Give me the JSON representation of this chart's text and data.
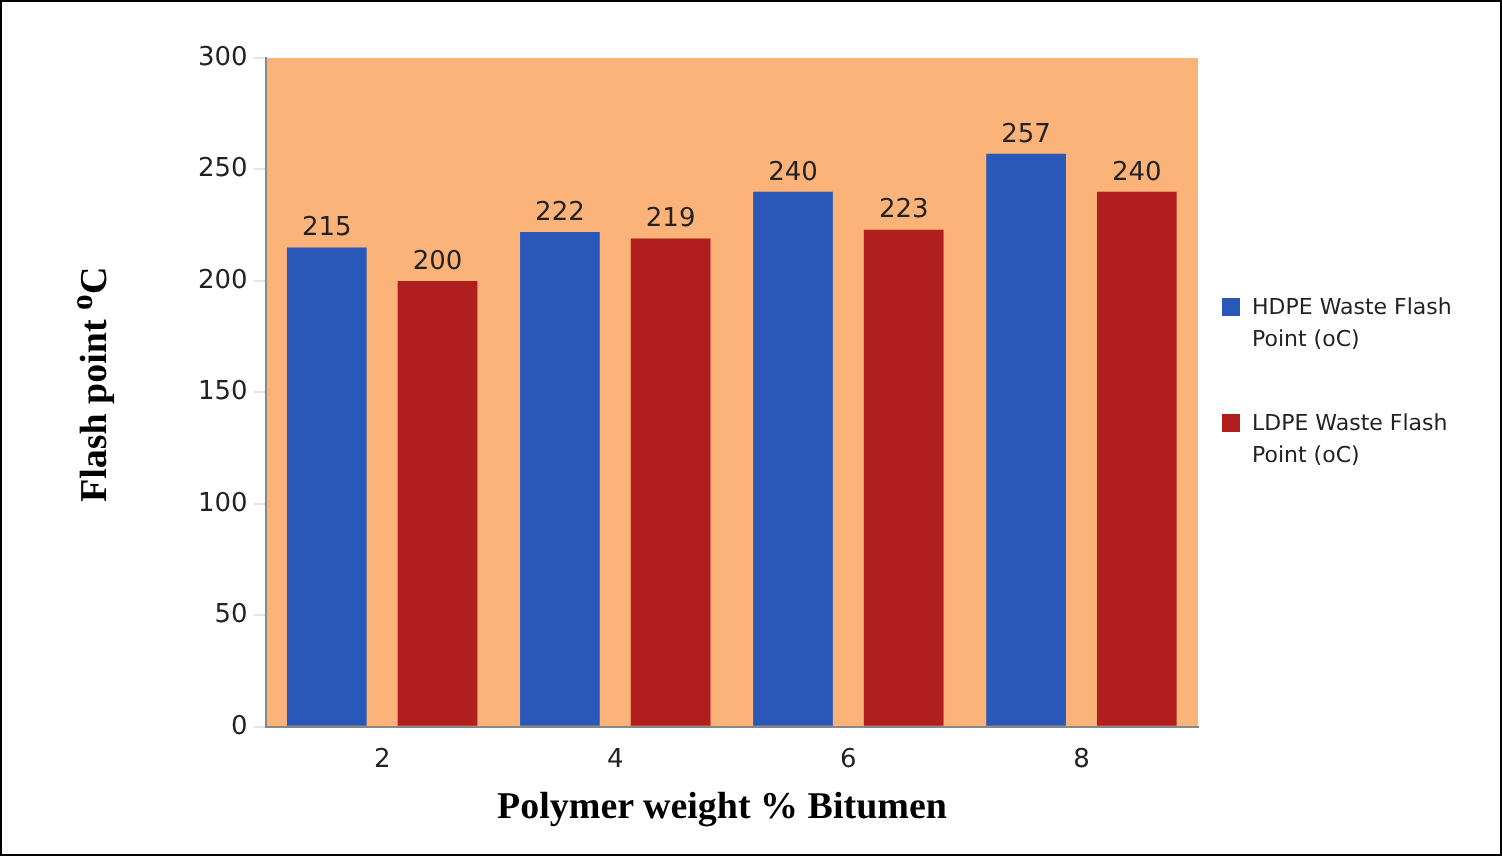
{
  "chart_data": {
    "type": "bar",
    "xlabel": "Polymer weight % Bitumen",
    "ylabel": "Flash point $^{o}$C",
    "categories": [
      "2",
      "4",
      "6",
      "8"
    ],
    "series": [
      {
        "name": "HDPE Waste Flash Point (oC)",
        "color": "#2a58b8",
        "values": [
          215,
          222,
          240,
          257
        ]
      },
      {
        "name": "LDPE Waste Flash Point (oC)",
        "color": "#b01e1e",
        "values": [
          200,
          219,
          223,
          240
        ]
      }
    ],
    "ylim": [
      0,
      300
    ],
    "yticks": [
      0,
      50,
      100,
      150,
      200,
      250,
      300
    ],
    "grid": false,
    "legend": "right",
    "data_labels": true
  }
}
